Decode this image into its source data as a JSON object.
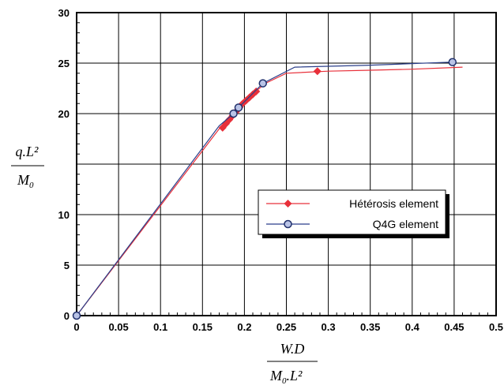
{
  "chart_data": {
    "type": "line",
    "title": "",
    "xlabel": {
      "numerator": "W.D",
      "denominator_main": "M",
      "denominator_sub": "0",
      "denominator_tail": ".L²"
    },
    "ylabel": {
      "numerator": "q.L²",
      "denominator_main": "M",
      "denominator_sub": "0"
    },
    "xlim": [
      0,
      0.5
    ],
    "ylim": [
      0,
      30
    ],
    "x_ticks": [
      "0",
      "0.05",
      "0.1",
      "0.15",
      "0.2",
      "0.25",
      "0.3",
      "0.35",
      "0.4",
      "0.45",
      "0.5"
    ],
    "y_ticks": [
      "0",
      "5",
      "10",
      "",
      "20",
      "25",
      "30"
    ],
    "grid": true,
    "legend_position": "center-right",
    "series": [
      {
        "name": "Hétérosis element",
        "color": "#e8303a",
        "marker": "diamond",
        "line": [
          [
            0,
            0
          ],
          [
            0.17,
            18.5
          ],
          [
            0.2,
            21.2
          ],
          [
            0.215,
            22.3
          ],
          [
            0.225,
            23
          ],
          [
            0.25,
            24.0
          ],
          [
            0.3,
            24.2
          ],
          [
            0.35,
            24.3
          ],
          [
            0.4,
            24.4
          ],
          [
            0.46,
            24.6
          ]
        ],
        "points": [
          [
            0.174,
            18.6
          ],
          [
            0.178,
            19.0
          ],
          [
            0.182,
            19.4
          ],
          [
            0.186,
            19.8
          ],
          [
            0.19,
            20.2
          ],
          [
            0.194,
            20.6
          ],
          [
            0.198,
            21.0
          ],
          [
            0.202,
            21.3
          ],
          [
            0.206,
            21.6
          ],
          [
            0.21,
            21.9
          ],
          [
            0.214,
            22.2
          ],
          [
            0.287,
            24.2
          ]
        ]
      },
      {
        "name": "Q4G element",
        "color": "#2b3f8a",
        "marker": "circle",
        "line": [
          [
            0,
            0
          ],
          [
            0.17,
            18.8
          ],
          [
            0.187,
            20.0
          ],
          [
            0.193,
            20.6
          ],
          [
            0.222,
            23.0
          ],
          [
            0.26,
            24.6
          ],
          [
            0.35,
            24.8
          ],
          [
            0.448,
            25.1
          ]
        ],
        "points": [
          [
            0,
            0
          ],
          [
            0.187,
            20.0
          ],
          [
            0.193,
            20.6
          ],
          [
            0.222,
            23.0
          ],
          [
            0.448,
            25.1
          ]
        ]
      }
    ]
  }
}
